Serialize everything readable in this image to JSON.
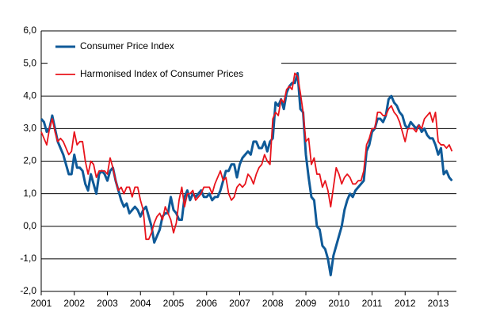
{
  "chart_data": {
    "type": "line",
    "categories": [
      "2001",
      null,
      null,
      null,
      null,
      null,
      null,
      null,
      null,
      null,
      null,
      null,
      "2002",
      null,
      null,
      null,
      null,
      null,
      null,
      null,
      null,
      null,
      null,
      null,
      "2003",
      null,
      null,
      null,
      null,
      null,
      null,
      null,
      null,
      null,
      null,
      null,
      "2004",
      null,
      null,
      null,
      null,
      null,
      null,
      null,
      null,
      null,
      null,
      null,
      "2005",
      null,
      null,
      null,
      null,
      null,
      null,
      null,
      null,
      null,
      null,
      null,
      "2006",
      null,
      null,
      null,
      null,
      null,
      null,
      null,
      null,
      null,
      null,
      null,
      "2007",
      null,
      null,
      null,
      null,
      null,
      null,
      null,
      null,
      null,
      null,
      null,
      "2008",
      null,
      null,
      null,
      null,
      null,
      null,
      null,
      null,
      null,
      null,
      null,
      "2009",
      null,
      null,
      null,
      null,
      null,
      null,
      null,
      null,
      null,
      null,
      null,
      "2010",
      null,
      null,
      null,
      null,
      null,
      null,
      null,
      null,
      null,
      null,
      null,
      "2011",
      null,
      null,
      null,
      null,
      null,
      null,
      null,
      null,
      null,
      null,
      null,
      "2012",
      null,
      null,
      null,
      null,
      null,
      null,
      null,
      null,
      null,
      null,
      null,
      "2013",
      null,
      null,
      null,
      null,
      null
    ],
    "series": [
      {
        "name": "Consumer Price Index",
        "color": "#0f5a98",
        "values": [
          3.3,
          3.2,
          2.9,
          3.0,
          3.4,
          3.0,
          2.6,
          2.4,
          2.2,
          1.9,
          1.6,
          1.6,
          2.2,
          1.8,
          1.8,
          1.7,
          1.3,
          1.1,
          1.6,
          1.3,
          1.0,
          1.6,
          1.7,
          1.6,
          1.4,
          1.7,
          1.8,
          1.4,
          1.1,
          0.8,
          0.6,
          0.7,
          0.4,
          0.5,
          0.6,
          0.5,
          0.3,
          0.5,
          0.6,
          0.3,
          0.0,
          -0.5,
          -0.3,
          -0.1,
          0.3,
          0.4,
          0.4,
          0.9,
          0.5,
          0.4,
          0.2,
          0.2,
          0.9,
          1.1,
          0.8,
          1.0,
          0.9,
          1.0,
          1.1,
          0.9,
          0.9,
          1.0,
          0.8,
          0.9,
          0.9,
          1.1,
          1.4,
          1.7,
          1.7,
          1.9,
          1.9,
          1.5,
          1.9,
          2.1,
          2.2,
          2.3,
          2.2,
          2.6,
          2.6,
          2.4,
          2.4,
          2.6,
          2.3,
          2.6,
          2.7,
          3.8,
          3.7,
          3.9,
          3.6,
          4.1,
          4.3,
          4.4,
          4.4,
          4.7,
          3.6,
          3.5,
          2.2,
          1.5,
          0.9,
          0.8,
          0.0,
          -0.1,
          -0.6,
          -0.7,
          -1.0,
          -1.5,
          -0.9,
          -0.6,
          -0.3,
          0.0,
          0.5,
          0.8,
          1.0,
          0.9,
          1.1,
          1.2,
          1.3,
          1.4,
          2.3,
          2.5,
          2.9,
          3.0,
          3.3,
          3.3,
          3.2,
          3.4,
          3.9,
          4.0,
          3.8,
          3.7,
          3.5,
          3.4,
          3.1,
          3.0,
          3.2,
          3.1,
          3.0,
          3.1,
          2.9,
          3.0,
          2.8,
          2.7,
          2.7,
          2.5,
          2.2,
          2.4,
          1.6,
          1.7,
          1.5,
          1.4
        ]
      },
      {
        "name": "Harmonised Index of Consumer Prices",
        "color": "#e8141c",
        "values": [
          2.9,
          2.7,
          2.5,
          3.0,
          3.3,
          2.9,
          2.6,
          2.7,
          2.6,
          2.4,
          2.2,
          2.3,
          2.9,
          2.5,
          2.6,
          2.6,
          2.0,
          1.6,
          2.0,
          1.9,
          1.5,
          1.7,
          1.7,
          1.7,
          1.6,
          2.1,
          1.8,
          1.4,
          1.1,
          1.2,
          1.0,
          1.2,
          1.2,
          0.9,
          1.2,
          1.2,
          0.8,
          0.5,
          -0.4,
          -0.4,
          -0.2,
          0.1,
          0.3,
          0.4,
          0.2,
          0.6,
          0.4,
          0.2,
          -0.2,
          0.1,
          0.8,
          1.2,
          0.6,
          1.0,
          1.0,
          1.1,
          0.8,
          0.9,
          1.0,
          1.2,
          1.2,
          1.2,
          1.0,
          1.3,
          1.5,
          1.7,
          1.4,
          1.5,
          1.0,
          0.8,
          0.9,
          1.2,
          1.3,
          1.2,
          1.3,
          1.6,
          1.5,
          1.3,
          1.6,
          1.8,
          1.9,
          2.2,
          2.0,
          1.9,
          3.3,
          3.5,
          3.4,
          3.9,
          3.8,
          4.2,
          4.3,
          4.2,
          4.7,
          4.6,
          4.1,
          3.5,
          2.6,
          2.7,
          1.9,
          2.1,
          1.6,
          1.6,
          1.2,
          1.4,
          1.1,
          0.6,
          1.2,
          1.8,
          1.6,
          1.3,
          1.5,
          1.6,
          1.5,
          1.3,
          1.3,
          1.4,
          1.4,
          1.7,
          2.5,
          2.7,
          3.0,
          3.0,
          3.5,
          3.5,
          3.4,
          3.4,
          3.6,
          3.7,
          3.5,
          3.4,
          3.2,
          2.9,
          2.6,
          3.0,
          3.0,
          3.0,
          2.9,
          3.1,
          3.0,
          3.3,
          3.4,
          3.5,
          3.2,
          3.5,
          2.6,
          2.5,
          2.5,
          2.4,
          2.5,
          2.3
        ]
      }
    ],
    "ylim": [
      -2,
      6
    ],
    "yticks": [
      {
        "value": -2,
        "label": "-2,0"
      },
      {
        "value": -1,
        "label": "-1,0"
      },
      {
        "value": 0,
        "label": "0,0"
      },
      {
        "value": 1,
        "label": "1,0"
      },
      {
        "value": 2,
        "label": "2,0"
      },
      {
        "value": 3,
        "label": "3,0"
      },
      {
        "value": 4,
        "label": "4,0"
      },
      {
        "value": 5,
        "label": "5,0"
      },
      {
        "value": 6,
        "label": "6,0"
      }
    ],
    "grid": true
  }
}
